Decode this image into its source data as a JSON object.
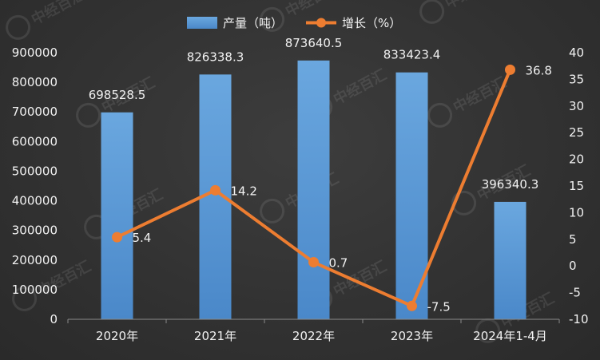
{
  "chart_data": {
    "type": "bar",
    "categories": [
      "2020年",
      "2021年",
      "2022年",
      "2023年",
      "2024年1-4月"
    ],
    "series": [
      {
        "name": "产量（吨）",
        "type": "bar",
        "axis": "left",
        "values": [
          698528.5,
          826338.3,
          873640.5,
          833423.4,
          396340.3
        ],
        "labels": [
          "698528.5",
          "826338.3",
          "873640.5",
          "833423.4",
          "396340.3"
        ],
        "color": "#5b9bd5"
      },
      {
        "name": "增长（%）",
        "type": "line",
        "axis": "right",
        "values": [
          5.4,
          14.2,
          0.7,
          -7.5,
          36.8
        ],
        "labels": [
          "5.4",
          "14.2",
          "0.7",
          "-7.5",
          "36.8"
        ],
        "color": "#ed7d31"
      }
    ],
    "y_left": {
      "range": [
        0,
        900000
      ],
      "ticks": [
        "0",
        "100000",
        "200000",
        "300000",
        "400000",
        "500000",
        "600000",
        "700000",
        "800000",
        "900000"
      ]
    },
    "y_right": {
      "range": [
        -10,
        40
      ],
      "ticks": [
        "-10",
        "-5",
        "0",
        "5",
        "10",
        "15",
        "20",
        "25",
        "30",
        "35",
        "40"
      ]
    },
    "legend_position": "top-center",
    "grid": false,
    "watermark_text": "中经百汇"
  }
}
